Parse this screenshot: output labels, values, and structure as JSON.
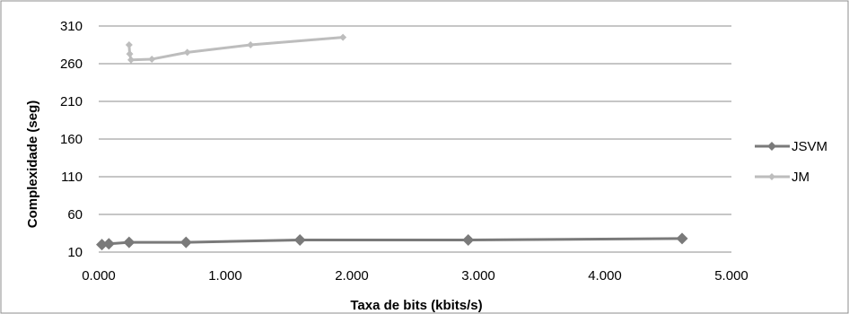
{
  "chart_data": {
    "type": "line",
    "xlabel": "Taxa de bits (kbits/s)",
    "ylabel": "Complexidade (seg)",
    "xlim": [
      0,
      5000
    ],
    "ylim": [
      10,
      310
    ],
    "xticks": [
      0,
      1000,
      2000,
      3000,
      4000,
      5000
    ],
    "xtick_labels": [
      "0.000",
      "1.000",
      "2.000",
      "3.000",
      "4.000",
      "5.000"
    ],
    "yticks": [
      10,
      60,
      110,
      160,
      210,
      260,
      310
    ],
    "ytick_labels": [
      "10",
      "60",
      "110",
      "160",
      "210",
      "260",
      "310"
    ],
    "grid": "horizontal",
    "legend_position": "right",
    "series": [
      {
        "name": "JSVM",
        "color": "#7a7a7a",
        "marker": "diamond",
        "points": [
          {
            "x": 25,
            "y": 20
          },
          {
            "x": 80,
            "y": 21
          },
          {
            "x": 240,
            "y": 23
          },
          {
            "x": 690,
            "y": 23
          },
          {
            "x": 1590,
            "y": 26
          },
          {
            "x": 2920,
            "y": 26
          },
          {
            "x": 4610,
            "y": 28
          }
        ]
      },
      {
        "name": "JM",
        "color": "#bdbdbd",
        "marker": "diamond",
        "points": [
          {
            "x": 240,
            "y": 285
          },
          {
            "x": 245,
            "y": 273
          },
          {
            "x": 255,
            "y": 265
          },
          {
            "x": 420,
            "y": 266
          },
          {
            "x": 700,
            "y": 275
          },
          {
            "x": 1200,
            "y": 285
          },
          {
            "x": 1930,
            "y": 295
          }
        ]
      }
    ]
  }
}
